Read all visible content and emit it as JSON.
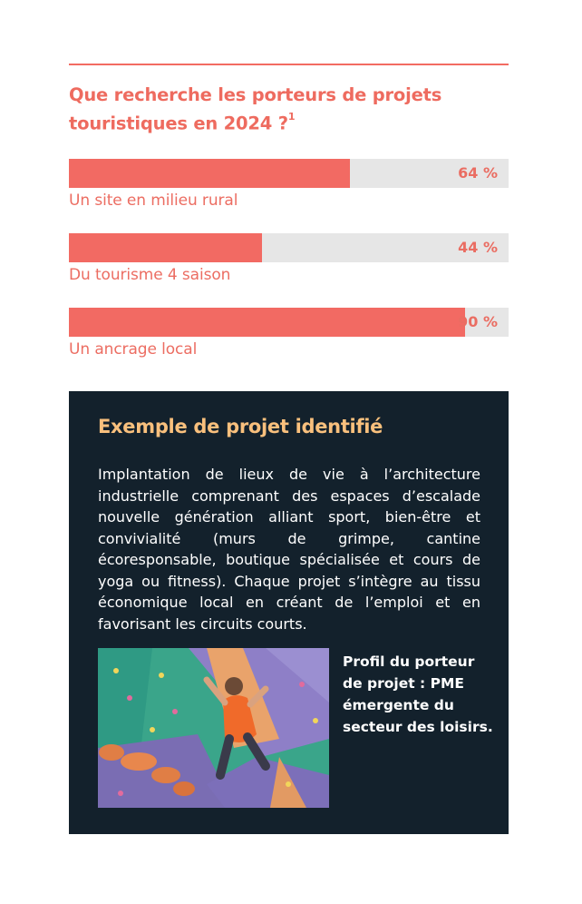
{
  "title": {
    "text": "Que recherche les porteurs de projets touristiques en 2024 ?",
    "footnote": "1"
  },
  "bars": [
    {
      "label": "Un site en milieu rural",
      "value": 64,
      "display": "64 %"
    },
    {
      "label": "Du tourisme 4 saison",
      "value": 44,
      "display": "44 %"
    },
    {
      "label": "Un ancrage local",
      "value": 90,
      "display": "90 %"
    }
  ],
  "example": {
    "heading": "Exemple de projet identifié",
    "body": "Implantation de lieux de vie à l’architecture industrielle comprenant des espaces d’escalade nouvelle génération alliant sport, bien-être et convivialité (murs de grimpe, cantine écoresponsable, boutique spécialisée et cours de yoga ou fitness). Chaque projet s’intègre au tissu économique local en créant de l’emploi et en favorisant les circuits courts.",
    "profile": "Profil du porteur de projet : PME émergente du secteur des loisirs.",
    "image": "climbing-wall-photo"
  },
  "colors": {
    "accent": "#f26a63",
    "track": "#e6e6e6",
    "panel": "#13212c",
    "heading": "#f9c07d"
  }
}
